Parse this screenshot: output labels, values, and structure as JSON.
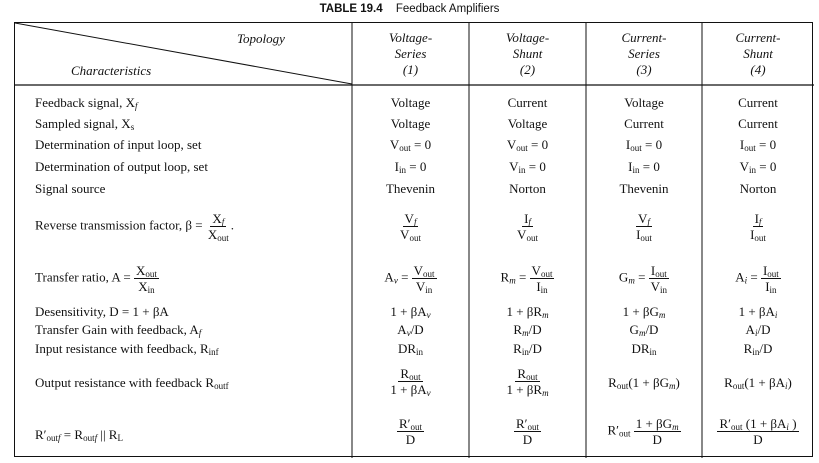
{
  "caption": {
    "table_no": "TABLE 19.4",
    "title": "Feedback Amplifiers"
  },
  "header": {
    "topology": "Topology",
    "characteristics": "Characteristics",
    "cols": [
      {
        "l1": "Voltage-",
        "l2": "Series",
        "l3": "(1)"
      },
      {
        "l1": "Voltage-",
        "l2": "Shunt",
        "l3": "(2)"
      },
      {
        "l1": "Current-",
        "l2": "Series",
        "l3": "(3)"
      },
      {
        "l1": "Current-",
        "l2": "Shunt",
        "l3": "(4)"
      }
    ]
  },
  "rows": {
    "feedback": {
      "label": "Feedback signal, X",
      "sub": "f",
      "v": [
        "Voltage",
        "Current",
        "Voltage",
        "Current"
      ]
    },
    "sampled": {
      "label": "Sampled signal, X",
      "sub": "s",
      "v": [
        "Voltage",
        "Voltage",
        "Current",
        "Current"
      ]
    },
    "input_loop": {
      "label": "Determination of input loop, set"
    },
    "output_loop": {
      "label": "Determination of output loop, set"
    },
    "source": {
      "label": "Signal source",
      "v": [
        "Thevenin",
        "Norton",
        "Thevenin",
        "Norton"
      ]
    },
    "beta": {
      "label": "Reverse transmission factor, β ="
    },
    "transfer": {
      "label": "Transfer ratio, A ="
    },
    "desens": {
      "label": "Desensitivity, D = 1 + βA"
    },
    "gain_fb": {
      "label": "Transfer Gain with feedback, A",
      "sub": "f"
    },
    "rin": {
      "label": "Input resistance with feedback, R",
      "sub": "inf"
    },
    "rout": {
      "label": "Output resistance with feedback R",
      "sub": "outf"
    },
    "routp": {
      "label": "R′"
    }
  }
}
